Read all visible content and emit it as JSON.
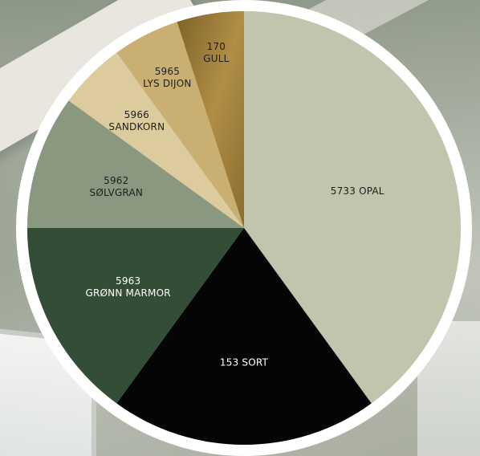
{
  "chart_data": {
    "type": "pie",
    "start_angle_deg": 0,
    "direction": "clockwise",
    "slices": [
      {
        "line1": "5733 OPAL",
        "line2": "",
        "value": 40.0,
        "color": "#c3c4ae",
        "label_color": "#1e1e1e"
      },
      {
        "line1": "153 SORT",
        "line2": "",
        "value": 20.0,
        "color": "#050505",
        "label_color": "#ffffff"
      },
      {
        "line1": "5963",
        "line2": "GRØNN MARMOR",
        "value": 15.0,
        "color": "#344d37",
        "label_color": "#ffffff"
      },
      {
        "line1": "5962",
        "line2": "SØLVGRAN",
        "value": 10.0,
        "color": "#8a9880",
        "label_color": "#1e1e1e"
      },
      {
        "line1": "5966",
        "line2": "SANDKORN",
        "value": 5.0,
        "color": "#dccb9c",
        "label_color": "#1e1e1e"
      },
      {
        "line1": "5965",
        "line2": "LYS DIJON",
        "value": 5.0,
        "color": "#c9b072",
        "label_color": "#1e1e1e"
      },
      {
        "line1": "170",
        "line2": "GULL",
        "value": 5.0,
        "color": "#a4843f",
        "label_color": "#1e1e1e"
      }
    ]
  },
  "ring_color": "#ffffff"
}
